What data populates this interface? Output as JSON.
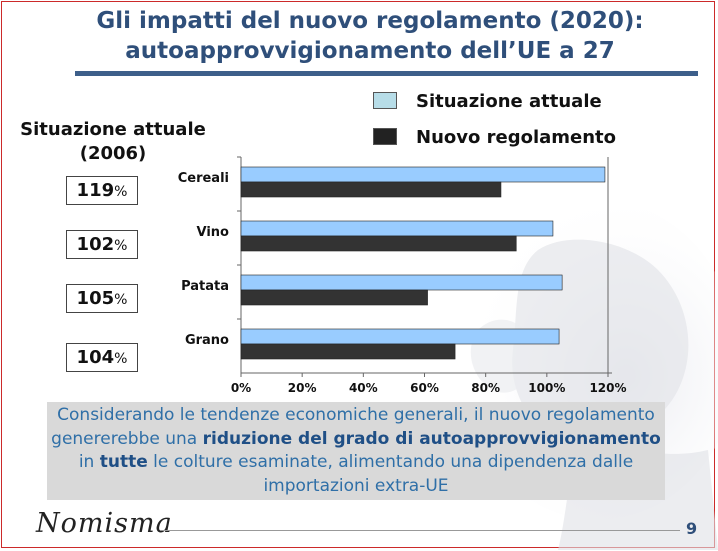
{
  "slide": {
    "title_line1": "Gli impatti del nuovo regolamento (2020):",
    "title_line2": "autoapprovvigionamento dell’UE a 27",
    "side_title_line1": "Situazione attuale",
    "side_title_line2": "(2006)",
    "current_values": [
      {
        "num": "119",
        "pct": "%"
      },
      {
        "num": "102",
        "pct": "%"
      },
      {
        "num": "105",
        "pct": "%"
      },
      {
        "num": "104",
        "pct": "%"
      }
    ],
    "legend": [
      {
        "label": "Situazione attuale",
        "color": "#b7dde8"
      },
      {
        "label": "Nuovo regolamento",
        "color": "#222222"
      }
    ],
    "note": {
      "p1": "Considerando le tendenze economiche generali, il nuovo regolamento genererebbe una ",
      "b1": "riduzione del grado di autoapprovvigionamento",
      "p2": " in ",
      "b2": "tutte",
      "p3": " le colture esaminate, alimentando una dipendenza dalle importazioni extra-UE"
    },
    "logo": "Nomisma",
    "page_number": "9"
  },
  "chart_data": {
    "type": "bar",
    "orientation": "horizontal",
    "categories": [
      "Cereali",
      "Vino",
      "Patata",
      "Grano"
    ],
    "series": [
      {
        "name": "Situazione attuale",
        "color": "#99ccff",
        "values": [
          119,
          102,
          105,
          104
        ]
      },
      {
        "name": "Nuovo regolamento",
        "color": "#333333",
        "values": [
          85,
          90,
          61,
          70
        ]
      }
    ],
    "xlim": [
      0,
      120
    ],
    "x_ticks": [
      "0%",
      "20%",
      "40%",
      "60%",
      "80%",
      "100%",
      "120%"
    ],
    "grid": false,
    "legend_position": "top-right"
  }
}
